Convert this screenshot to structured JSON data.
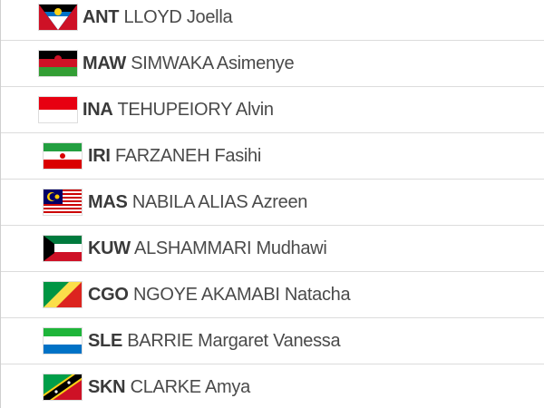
{
  "rows": [
    {
      "code": "ANT",
      "name": "LLOYD Joella"
    },
    {
      "code": "MAW",
      "name": "SIMWAKA Asimenye"
    },
    {
      "code": "INA",
      "name": "TEHUPEIORY Alvin"
    },
    {
      "code": "IRI",
      "name": "FARZANEH Fasihi"
    },
    {
      "code": "MAS",
      "name": "NABILA ALIAS Azreen"
    },
    {
      "code": "KUW",
      "name": "ALSHAMMARI Mudhawi"
    },
    {
      "code": "CGO",
      "name": "NGOYE AKAMABI Natacha"
    },
    {
      "code": "SLE",
      "name": "BARRIE Margaret Vanessa"
    },
    {
      "code": "SKN",
      "name": "CLARKE Amya"
    }
  ]
}
